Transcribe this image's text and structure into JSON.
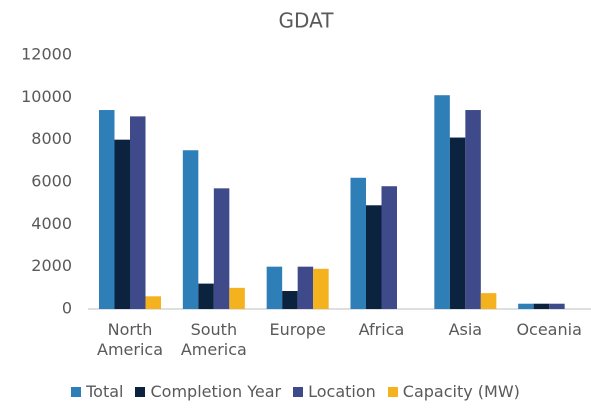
{
  "chart_data": {
    "type": "bar",
    "title": "GDAT",
    "categories": [
      "North America",
      "South America",
      "Europe",
      "Africa",
      "Asia",
      "Oceania"
    ],
    "series": [
      {
        "name": "Total",
        "color": "#2e7fb8",
        "values": [
          9400,
          7500,
          2000,
          6200,
          10100,
          250
        ]
      },
      {
        "name": "Completion Year",
        "color": "#0c2340",
        "values": [
          8000,
          1200,
          850,
          4900,
          8100,
          250
        ]
      },
      {
        "name": "Location",
        "color": "#3e4a8a",
        "values": [
          9100,
          5700,
          2000,
          5800,
          9400,
          250
        ]
      },
      {
        "name": "Capacity (MW)",
        "color": "#f5b21f",
        "values": [
          600,
          1000,
          1900,
          0,
          750,
          0
        ]
      }
    ],
    "ylim": [
      0,
      12000
    ],
    "yticks": [
      0,
      2000,
      4000,
      6000,
      8000,
      10000,
      12000
    ],
    "grid": false,
    "legend": "bottom"
  }
}
